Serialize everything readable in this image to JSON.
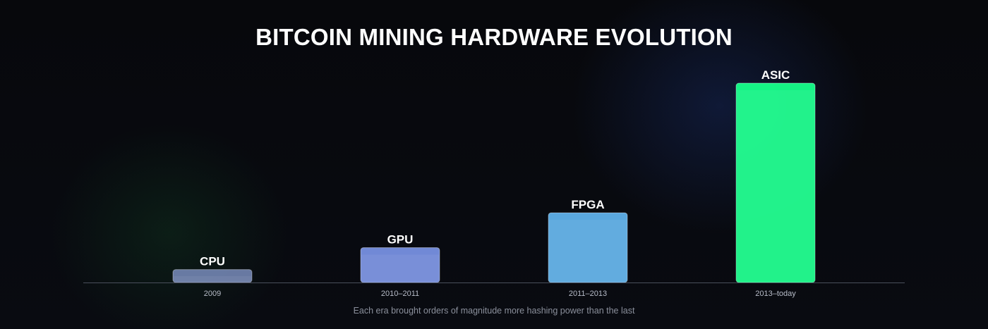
{
  "chart_data": {
    "type": "bar",
    "title": "BITCOIN MINING HARDWARE EVOLUTION",
    "caption": "Each era brought orders of magnitude more hashing power than the last",
    "categories": [
      "2009",
      "2010–2011",
      "2011–2013",
      "2013–today"
    ],
    "series": [
      {
        "values": [
          6.5,
          17.5,
          35,
          100
        ],
        "labels": [
          "CPU",
          "GPU",
          "FPGA",
          "ASIC"
        ],
        "colors": [
          "#6e7fab",
          "#7790e2",
          "#5eb0ea",
          "#16ff8a"
        ]
      }
    ],
    "ylim": [
      0,
      100
    ],
    "grid": false,
    "legend": "none",
    "axis_color": "#4a4f5c"
  }
}
